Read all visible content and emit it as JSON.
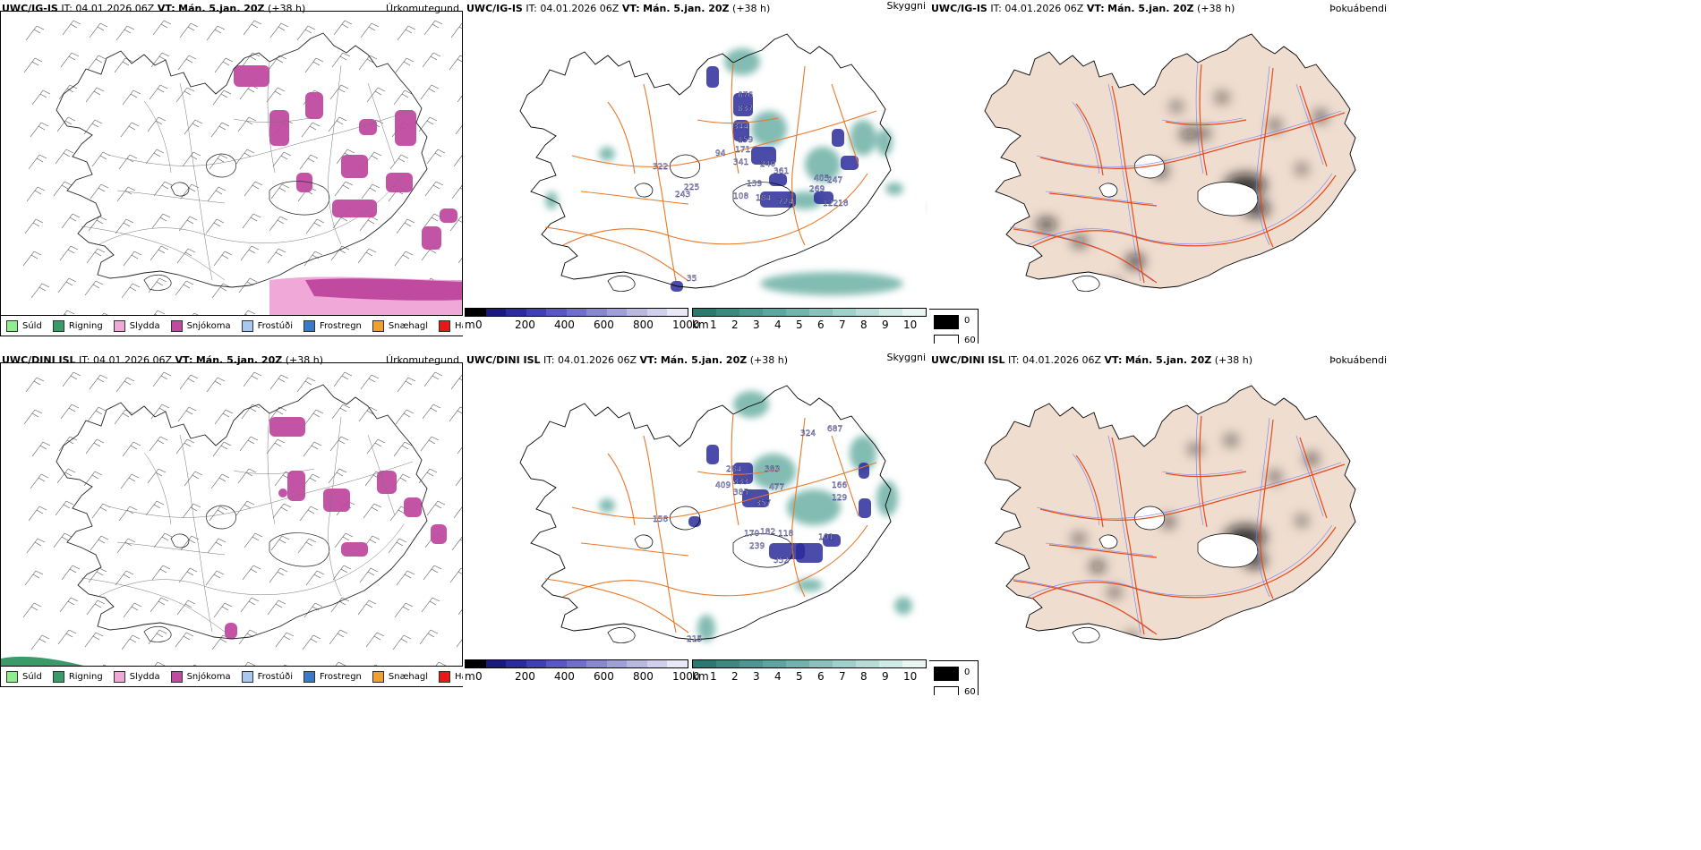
{
  "rows": [
    {
      "model": "UWC/IG-IS",
      "panels": [
        {
          "model": "UWC/IG-IS",
          "it_label": "IT:",
          "it": "04.01.2026 06Z",
          "vt_label": "VT:",
          "vt": "Mán. 5.jan. 20Z",
          "lead": "(+38 h)",
          "name": "Úrkomutegund"
        },
        {
          "model": "UWC/IG-IS",
          "it_label": "IT:",
          "it": "04.01.2026 06Z",
          "vt_label": "VT:",
          "vt": "Mán. 5.jan. 20Z",
          "lead": "(+38 h)",
          "name": "Skyggni"
        },
        {
          "model": "UWC/IG-IS",
          "it_label": "IT:",
          "it": "04.01.2026 06Z",
          "vt_label": "VT:",
          "vt": "Mán. 5.jan. 20Z",
          "lead": "(+38 h)",
          "name": "Þokuábendi"
        }
      ],
      "visibility_labels_m": [
        "35",
        "94",
        "344",
        "159",
        "171",
        "341",
        "240",
        "361",
        "269",
        "405",
        "247",
        "184",
        "724",
        "12218",
        "322",
        "225",
        "243",
        "108",
        "139",
        "676",
        "837"
      ]
    },
    {
      "model": "UWC/DINI ISL",
      "panels": [
        {
          "model": "UWC/DINI ISL",
          "it_label": "IT:",
          "it": "04.01.2026 06Z",
          "vt_label": "VT:",
          "vt": "Mán. 5.jan. 20Z",
          "lead": "(+38 h)",
          "name": "Úrkomutegund"
        },
        {
          "model": "UWC/DINI ISL",
          "it_label": "IT:",
          "it": "04.01.2026 06Z",
          "vt_label": "VT:",
          "vt": "Mán. 5.jan. 20Z",
          "lead": "(+38 h)",
          "name": "Skyggni"
        },
        {
          "model": "UWC/DINI ISL",
          "it_label": "IT:",
          "it": "04.01.2026 06Z",
          "vt_label": "VT:",
          "vt": "Mán. 5.jan. 20Z",
          "lead": "(+38 h)",
          "name": "Þokuábendi"
        }
      ],
      "visibility_labels_m": [
        "215",
        "284",
        "333",
        "385",
        "409",
        "383",
        "477",
        "357",
        "324",
        "687",
        "166",
        "129",
        "170",
        "182",
        "118",
        "101",
        "239",
        "352",
        "158"
      ]
    }
  ],
  "precip_legend": [
    {
      "label": "Súld",
      "color": "#90ee90"
    },
    {
      "label": "Rigning",
      "color": "#3a9a6a"
    },
    {
      "label": "Slydda",
      "color": "#f0a8d8"
    },
    {
      "label": "Snjókoma",
      "color": "#c04aa0"
    },
    {
      "label": "Frostúði",
      "color": "#a8c8f0"
    },
    {
      "label": "Frostregn",
      "color": "#3a78c8"
    },
    {
      "label": "Snæhagl",
      "color": "#f0a030"
    },
    {
      "label": "Haglél",
      "color": "#e81818"
    }
  ],
  "vis_m_scale": {
    "unit": "m",
    "ticks": [
      "0",
      "200",
      "400",
      "600",
      "800",
      "1000"
    ],
    "colors": [
      "#000000",
      "#1a1a7a",
      "#2b2b9a",
      "#4040b0",
      "#5858c0",
      "#7070c8",
      "#8888d0",
      "#a0a0d8",
      "#b8b8e0",
      "#d0d0ec",
      "#e8e8f6"
    ]
  },
  "vis_km_scale": {
    "unit": "km",
    "ticks": [
      "1",
      "2",
      "3",
      "4",
      "5",
      "6",
      "7",
      "8",
      "9",
      "10"
    ],
    "colors": [
      "#2a7a70",
      "#3a8a80",
      "#4a9890",
      "#5aa6a0",
      "#70b4ae",
      "#88c2bc",
      "#a0d0ca",
      "#b8ddd8",
      "#d0eae6",
      "#e8f5f3"
    ]
  },
  "fog_legend": [
    {
      "label": "0",
      "color": "#000000"
    },
    {
      "label": "60",
      "color": "#ffffff"
    }
  ],
  "colors": {
    "land_fog": "#efddd0",
    "roads": "#e8782a",
    "rivers": "#7080f0",
    "snow": "#c04aa0",
    "vis_teal": "#5aa69a",
    "vis_blue": "#2b2b9a"
  }
}
